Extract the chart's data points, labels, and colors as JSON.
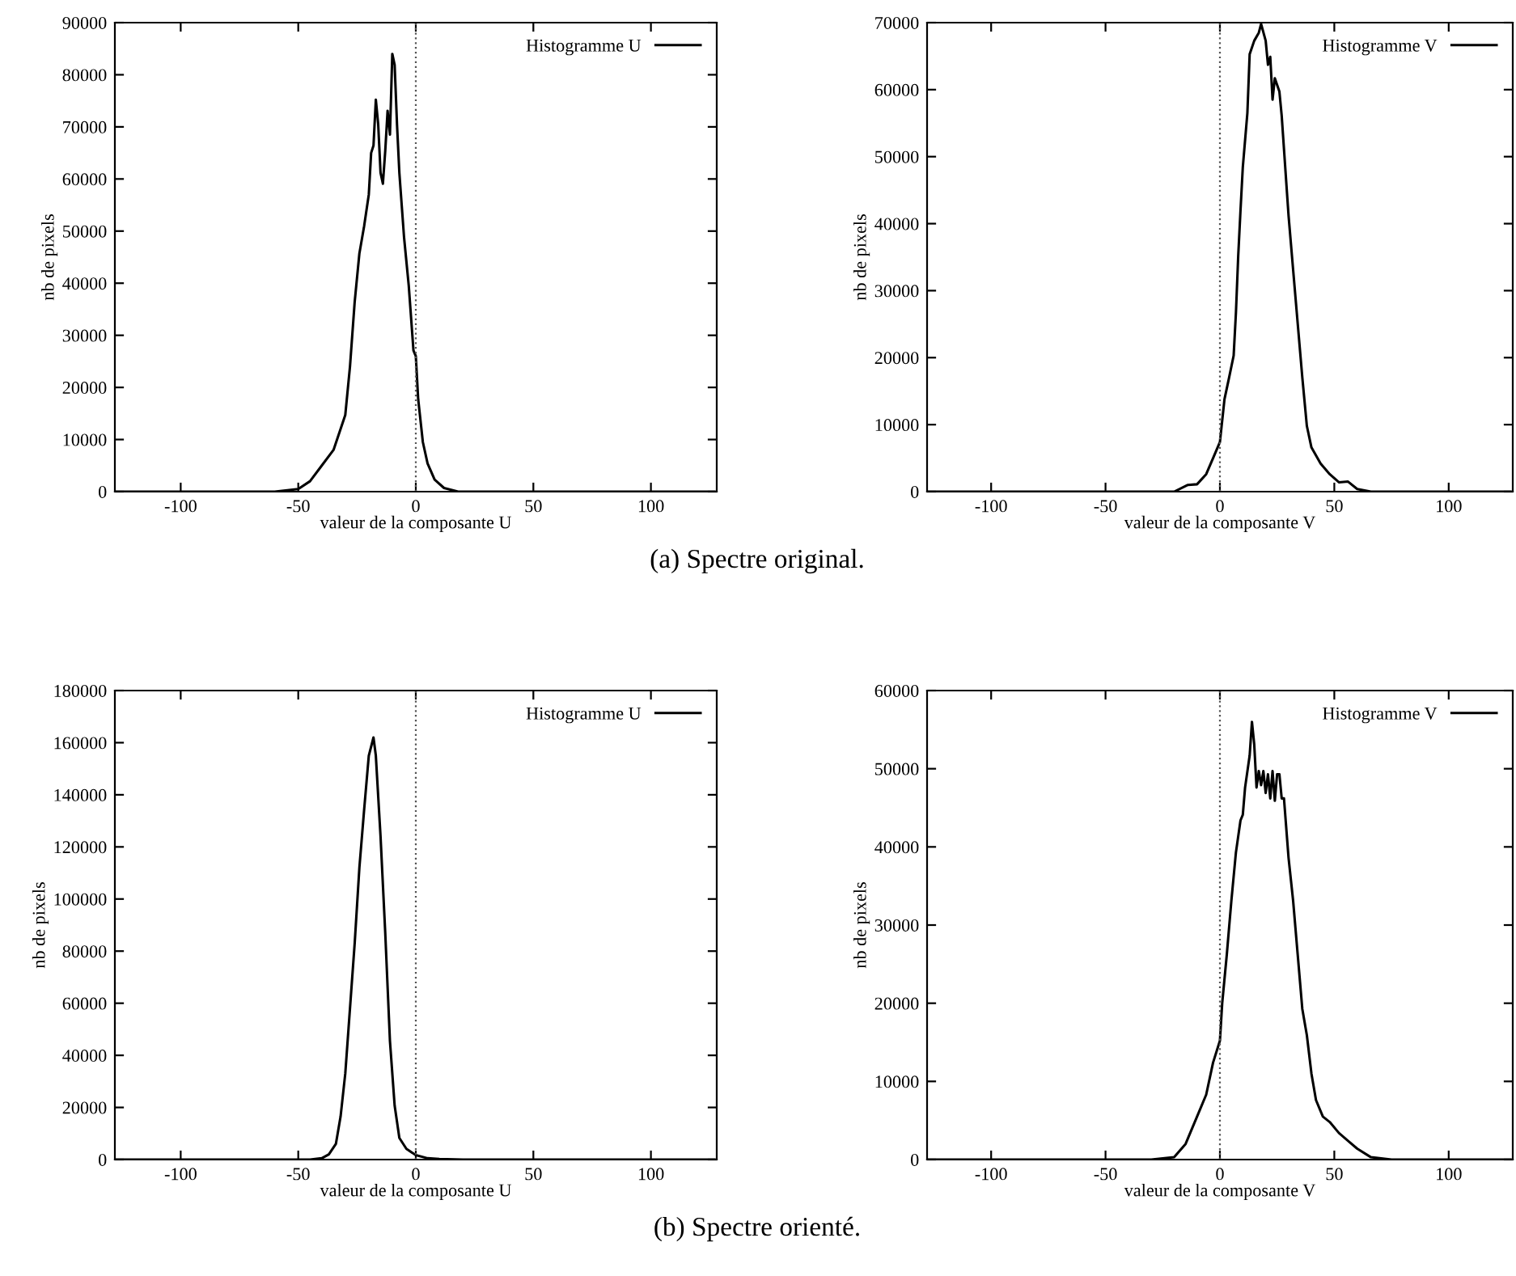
{
  "chart_data": [
    {
      "type": "line",
      "xlabel": "valeur de la composante U",
      "ylabel": "nb de pixels",
      "xlim": [
        -128,
        128
      ],
      "ylim": [
        0,
        90000
      ],
      "xticks": [
        -100,
        -50,
        0,
        50,
        100
      ],
      "yticks": [
        0,
        10000,
        20000,
        30000,
        40000,
        50000,
        60000,
        70000,
        80000,
        90000
      ],
      "legend": "top right",
      "annotations": [
        "(a) Spectre original."
      ],
      "ref_lines": [
        {
          "axis": "x",
          "value": 0,
          "color": "#555555",
          "line_style": "dotted"
        }
      ],
      "series": [
        {
          "name": "Histogramme U",
          "color": "#000000",
          "x": [
            -128,
            -60,
            -50,
            -45,
            -40,
            -35,
            -30,
            -28,
            -26,
            -24,
            -22,
            -20,
            -19,
            -18,
            -17,
            -16,
            -15,
            -14,
            -13,
            -12,
            -11,
            -10,
            -9,
            -8,
            -7,
            -5,
            -3,
            -1,
            0,
            1,
            3,
            5,
            8,
            12,
            18,
            127
          ],
          "values": [
            0,
            0,
            500,
            2000,
            5000,
            8000,
            14700,
            24000,
            36400,
            45700,
            50900,
            57000,
            65000,
            66400,
            75200,
            70500,
            61200,
            59100,
            65400,
            73100,
            68500,
            84000,
            81900,
            70500,
            61200,
            48800,
            39500,
            27100,
            26000,
            17800,
            9500,
            5400,
            2300,
            700,
            0,
            0
          ]
        }
      ]
    },
    {
      "type": "line",
      "xlabel": "valeur de la composante V",
      "ylabel": "nb de pixels",
      "xlim": [
        -128,
        128
      ],
      "ylim": [
        0,
        70000
      ],
      "xticks": [
        -100,
        -50,
        0,
        50,
        100
      ],
      "yticks": [
        0,
        10000,
        20000,
        30000,
        40000,
        50000,
        60000,
        70000
      ],
      "legend": "top right",
      "ref_lines": [
        {
          "axis": "x",
          "value": 0,
          "color": "#555555",
          "line_style": "dotted"
        }
      ],
      "series": [
        {
          "name": "Histogramme V",
          "color": "#000000",
          "x": [
            -128,
            -20,
            -14,
            -10,
            -6,
            -3,
            0,
            2,
            4,
            6,
            7,
            8,
            9,
            10,
            12,
            13,
            15,
            17,
            18,
            20,
            21,
            22,
            23,
            24,
            26,
            27,
            30,
            32,
            34,
            36,
            38,
            40,
            44,
            48,
            52,
            56,
            60,
            66,
            127
          ],
          "values": [
            0,
            0,
            1000,
            1100,
            2600,
            5000,
            7400,
            13800,
            17000,
            20300,
            26700,
            35200,
            42000,
            48400,
            56500,
            65300,
            67300,
            68500,
            69800,
            67300,
            63700,
            64900,
            58500,
            61700,
            59700,
            56100,
            41200,
            33100,
            25100,
            17100,
            9800,
            6600,
            4200,
            2600,
            1400,
            1500,
            400,
            0,
            0
          ]
        }
      ]
    },
    {
      "type": "line",
      "xlabel": "valeur de la composante U",
      "ylabel": "nb de pixels",
      "xlim": [
        -128,
        128
      ],
      "ylim": [
        0,
        180000
      ],
      "xticks": [
        -100,
        -50,
        0,
        50,
        100
      ],
      "yticks": [
        0,
        20000,
        40000,
        60000,
        80000,
        100000,
        120000,
        140000,
        160000,
        180000
      ],
      "legend": "top right",
      "annotations": [
        "(b) Spectre orienté."
      ],
      "ref_lines": [
        {
          "axis": "x",
          "value": 0,
          "color": "#555555",
          "line_style": "dotted"
        }
      ],
      "series": [
        {
          "name": "Histogramme U",
          "color": "#000000",
          "x": [
            -128,
            -45,
            -40,
            -37,
            -34,
            -32,
            -30,
            -28,
            -26,
            -24,
            -22,
            -20,
            -18,
            -17,
            -15,
            -13,
            -11,
            -9,
            -7,
            -4,
            0,
            5,
            10,
            20,
            127
          ],
          "values": [
            0,
            0,
            500,
            2000,
            6000,
            16500,
            33000,
            58000,
            83000,
            112000,
            134000,
            155000,
            162000,
            155000,
            124000,
            87000,
            45500,
            20700,
            8300,
            4100,
            1700,
            500,
            200,
            0,
            0
          ]
        }
      ]
    },
    {
      "type": "line",
      "xlabel": "valeur de la composante V",
      "ylabel": "nb de pixels",
      "xlim": [
        -128,
        128
      ],
      "ylim": [
        0,
        60000
      ],
      "xticks": [
        -100,
        -50,
        0,
        50,
        100
      ],
      "yticks": [
        0,
        10000,
        20000,
        30000,
        40000,
        50000,
        60000
      ],
      "legend": "top right",
      "ref_lines": [
        {
          "axis": "x",
          "value": 0,
          "color": "#555555",
          "line_style": "dotted"
        }
      ],
      "series": [
        {
          "name": "Histogramme V",
          "color": "#000000",
          "x": [
            -128,
            -30,
            -20,
            -15,
            -10,
            -6,
            -3,
            0,
            1,
            3,
            5,
            7,
            9,
            10,
            11,
            13,
            14,
            15,
            16,
            17,
            18,
            19,
            20,
            21,
            22,
            23,
            24,
            25,
            26,
            27,
            28,
            30,
            32,
            34,
            36,
            38,
            40,
            42,
            45,
            48,
            52,
            56,
            60,
            66,
            75,
            127
          ],
          "values": [
            0,
            0,
            300,
            2000,
            5500,
            8300,
            12400,
            15200,
            20000,
            26200,
            33100,
            39300,
            43400,
            44100,
            47600,
            51700,
            56000,
            53100,
            47600,
            49700,
            47900,
            49700,
            46900,
            49300,
            46200,
            49700,
            45900,
            49300,
            49300,
            46200,
            46200,
            38600,
            33100,
            26200,
            19300,
            15900,
            11000,
            7600,
            5500,
            4800,
            3400,
            2400,
            1400,
            300,
            0,
            0
          ]
        }
      ]
    }
  ]
}
